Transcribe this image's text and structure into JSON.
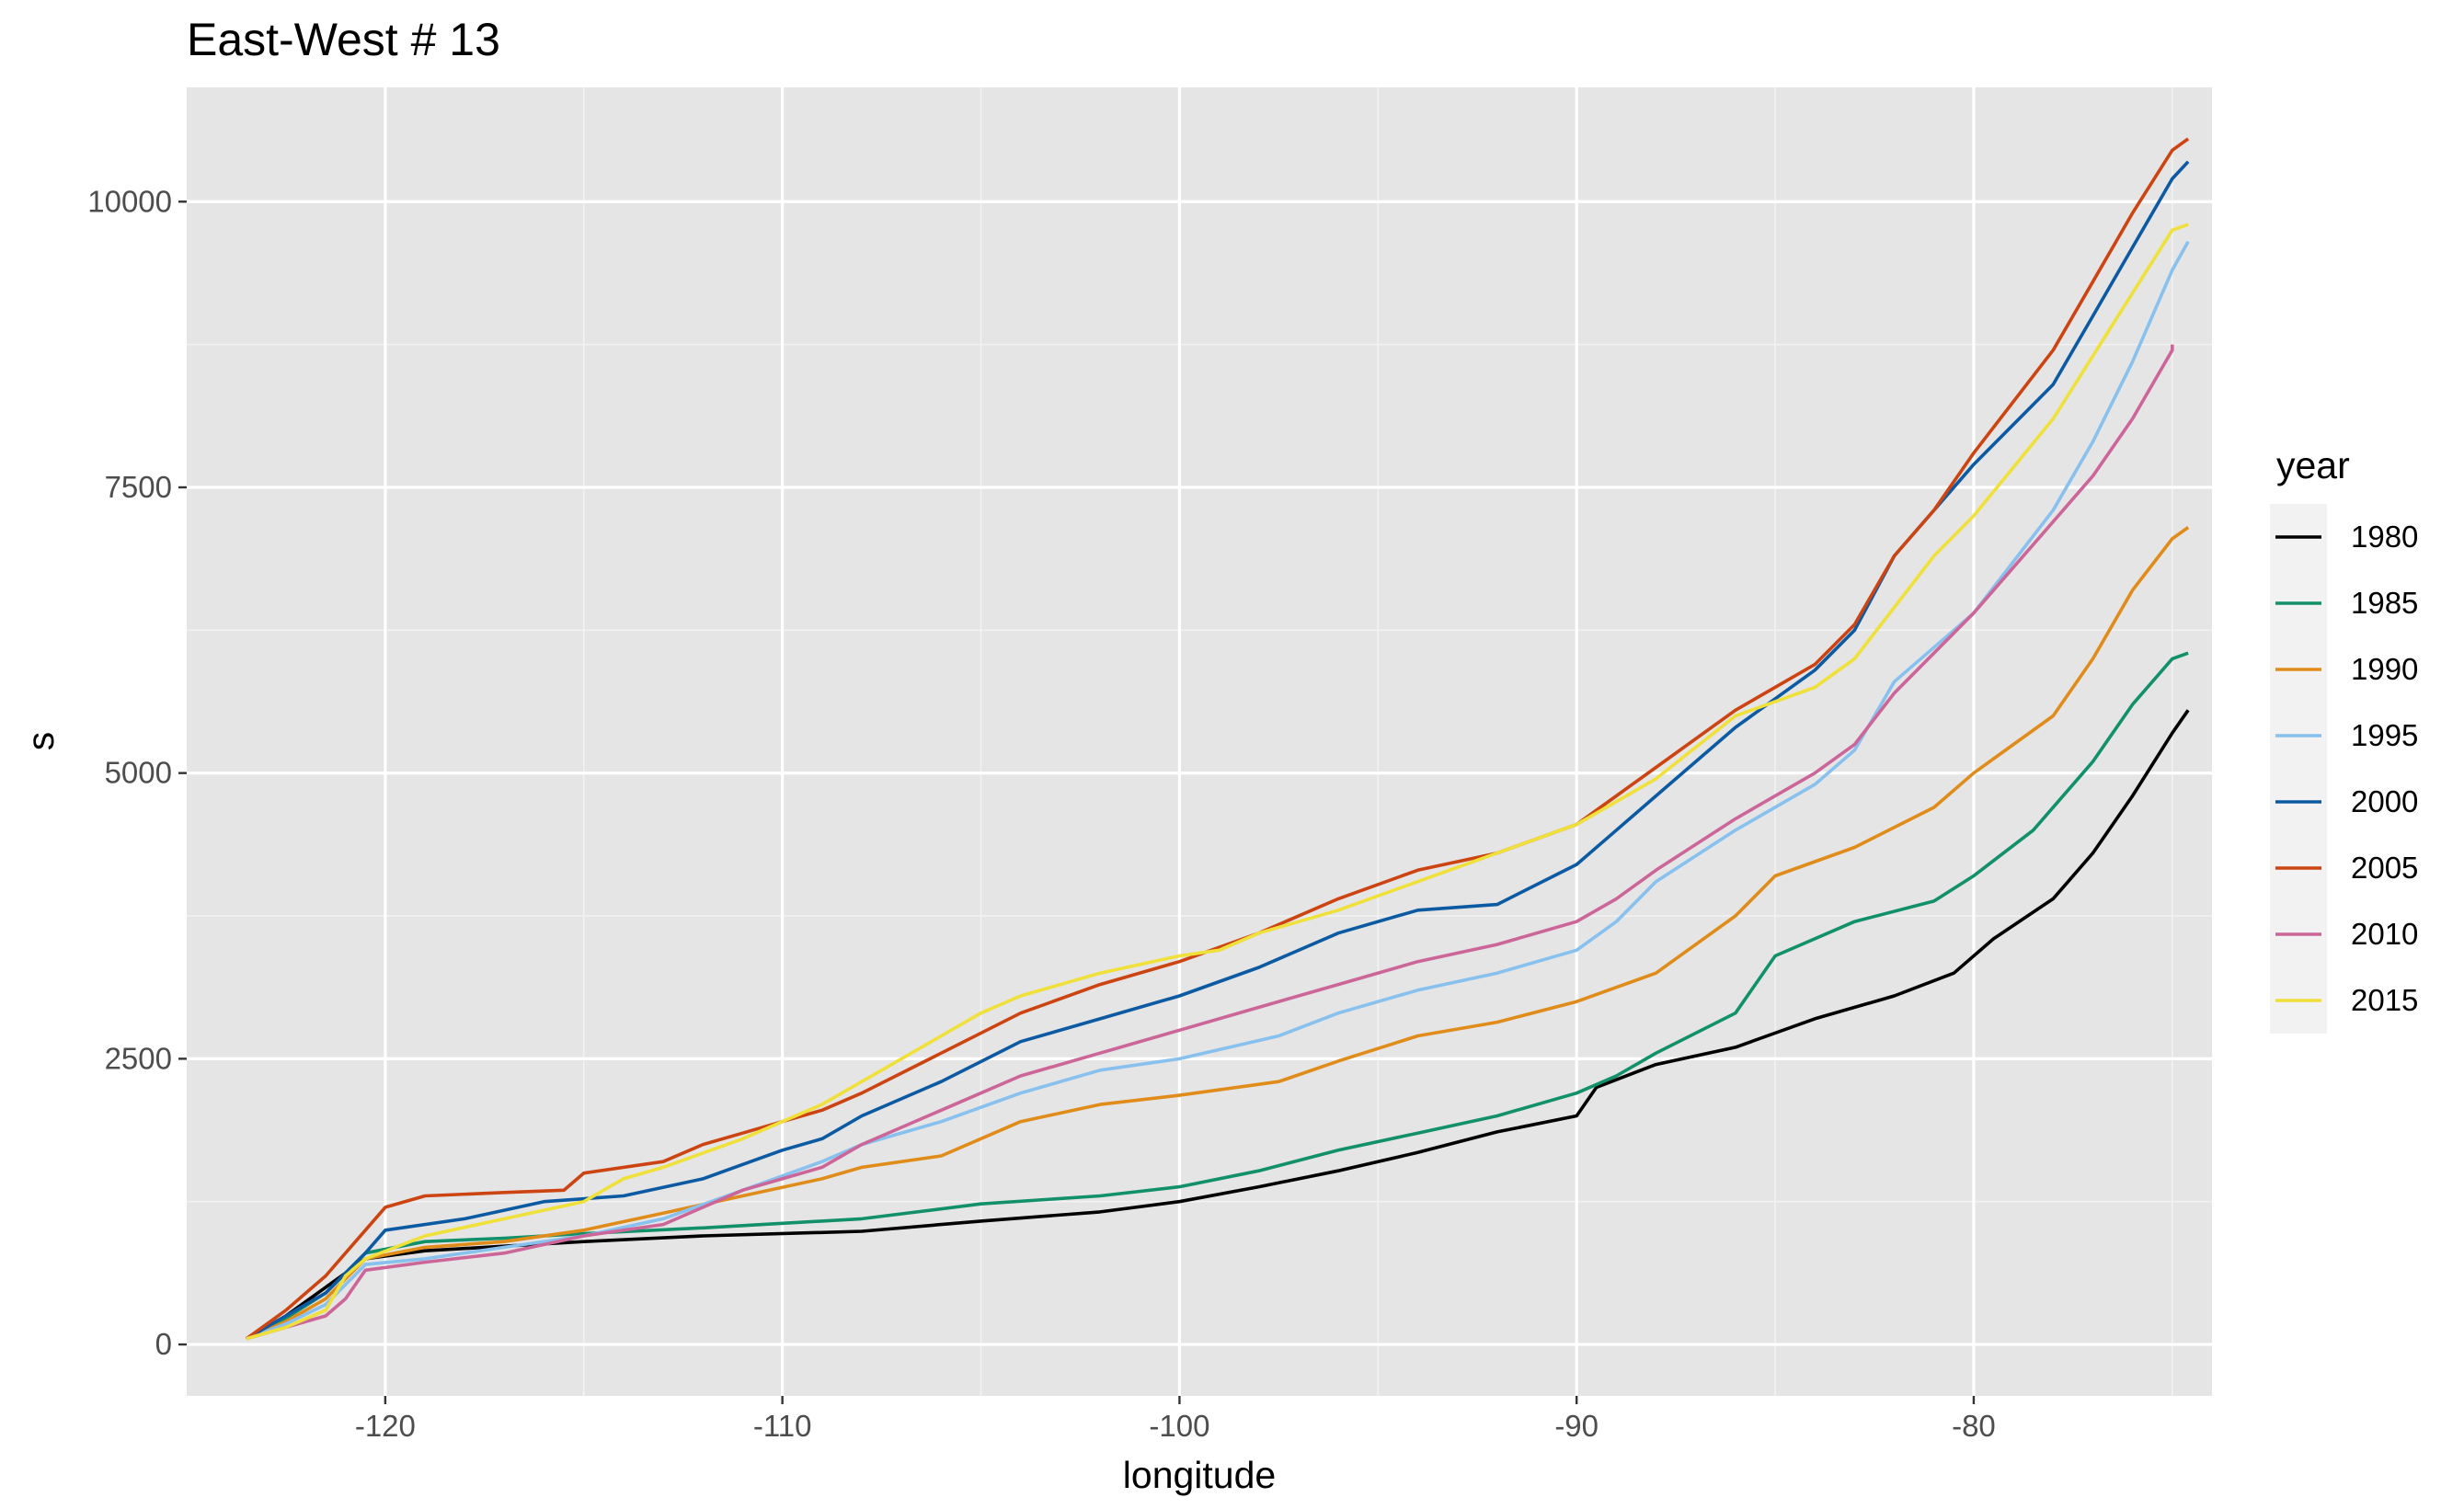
{
  "chart_data": {
    "type": "line",
    "title": "East-West # 13",
    "xlabel": "longitude",
    "ylabel": "s",
    "xlim": [
      -125,
      -74
    ],
    "ylim": [
      -450,
      11000
    ],
    "x_ticks": [
      -120,
      -110,
      -100,
      -90,
      -80
    ],
    "x_tick_labels": [
      "-120",
      "-110",
      "-100",
      "-90",
      "-80"
    ],
    "y_ticks": [
      0,
      2500,
      5000,
      7500,
      10000
    ],
    "y_tick_labels": [
      "0",
      "2500",
      "5000",
      "7500",
      "10000"
    ],
    "grid": true,
    "legend": {
      "title": "year",
      "position": "right"
    },
    "series": [
      {
        "name": "1980",
        "color": "#000000",
        "x": [
          -123.5,
          -122.5,
          -121.5,
          -120.5,
          -119,
          -117,
          -115,
          -112,
          -108,
          -105,
          -102,
          -100,
          -98,
          -96,
          -94,
          -92,
          -90,
          -89.5,
          -88,
          -86,
          -84,
          -82,
          -80.5,
          -79.5,
          -78,
          -77,
          -76,
          -75,
          -74.6
        ],
        "y": [
          50,
          250,
          500,
          750,
          820,
          860,
          900,
          950,
          990,
          1080,
          1160,
          1250,
          1380,
          1520,
          1680,
          1860,
          2000,
          2250,
          2450,
          2600,
          2850,
          3050,
          3250,
          3550,
          3900,
          4300,
          4800,
          5350,
          5550
        ]
      },
      {
        "name": "1985",
        "color": "#11906a",
        "x": [
          -123.5,
          -122.5,
          -121.5,
          -120.5,
          -119,
          -117,
          -115,
          -112,
          -108,
          -105,
          -102,
          -100,
          -98,
          -96,
          -94,
          -92,
          -90,
          -89,
          -88,
          -86,
          -85,
          -83,
          -81,
          -80,
          -78.5,
          -77,
          -76,
          -75,
          -74.6
        ],
        "y": [
          50,
          230,
          450,
          800,
          900,
          930,
          970,
          1020,
          1100,
          1230,
          1300,
          1380,
          1520,
          1700,
          1850,
          2000,
          2200,
          2350,
          2550,
          2900,
          3400,
          3700,
          3880,
          4100,
          4500,
          5100,
          5600,
          6000,
          6050
        ]
      },
      {
        "name": "1990",
        "color": "#e08c1a",
        "x": [
          -123.5,
          -122.5,
          -121.5,
          -120.5,
          -119,
          -117,
          -115,
          -113,
          -111,
          -109,
          -108,
          -106,
          -104,
          -102,
          -100,
          -97.5,
          -96,
          -94,
          -92,
          -90,
          -88,
          -86,
          -85,
          -83,
          -81,
          -80,
          -78,
          -77,
          -76,
          -75,
          -74.6
        ],
        "y": [
          50,
          200,
          400,
          750,
          850,
          900,
          1000,
          1150,
          1300,
          1450,
          1550,
          1650,
          1950,
          2100,
          2180,
          2300,
          2480,
          2700,
          2820,
          3000,
          3250,
          3750,
          4100,
          4350,
          4700,
          5000,
          5500,
          6000,
          6600,
          7050,
          7150
        ]
      },
      {
        "name": "1995",
        "color": "#88c0ee",
        "x": [
          -123.5,
          -122.5,
          -121.5,
          -120.5,
          -119,
          -117,
          -115,
          -113,
          -111,
          -109,
          -108,
          -106,
          -104,
          -102,
          -100,
          -97.5,
          -96,
          -94,
          -92,
          -90,
          -89,
          -88,
          -86,
          -84,
          -83,
          -82,
          -80,
          -78,
          -77,
          -76,
          -75,
          -74.6
        ],
        "y": [
          50,
          180,
          350,
          700,
          750,
          850,
          950,
          1100,
          1350,
          1600,
          1750,
          1950,
          2200,
          2400,
          2500,
          2700,
          2900,
          3100,
          3250,
          3450,
          3700,
          4050,
          4500,
          4900,
          5200,
          5800,
          6400,
          7300,
          7900,
          8600,
          9400,
          9650
        ]
      },
      {
        "name": "2000",
        "color": "#0c5aa2",
        "x": [
          -123.5,
          -122.5,
          -121.5,
          -120.5,
          -120,
          -118,
          -116,
          -114,
          -112,
          -110,
          -109,
          -108,
          -106,
          -104,
          -102,
          -100,
          -98,
          -96,
          -94,
          -92,
          -90,
          -89,
          -88,
          -86,
          -84,
          -83,
          -82,
          -81,
          -80,
          -78,
          -77,
          -76,
          -75,
          -74.6
        ],
        "y": [
          50,
          250,
          450,
          800,
          1000,
          1100,
          1250,
          1300,
          1450,
          1700,
          1800,
          2000,
          2300,
          2650,
          2850,
          3050,
          3300,
          3600,
          3800,
          3850,
          4200,
          4500,
          4800,
          5400,
          5900,
          6250,
          6900,
          7300,
          7700,
          8400,
          9000,
          9600,
          10200,
          10350
        ]
      },
      {
        "name": "2005",
        "color": "#cc4411",
        "x": [
          -123.5,
          -122.5,
          -121.5,
          -120.5,
          -120,
          -119,
          -117,
          -115.5,
          -115,
          -113,
          -112,
          -111,
          -110,
          -109,
          -108,
          -106,
          -104,
          -102,
          -100,
          -98,
          -96,
          -94,
          -92,
          -90,
          -89,
          -88,
          -86,
          -84,
          -83,
          -82,
          -81,
          -80,
          -78,
          -77,
          -76,
          -75,
          -74.6
        ],
        "y": [
          50,
          300,
          600,
          1000,
          1200,
          1300,
          1330,
          1350,
          1500,
          1600,
          1750,
          1850,
          1950,
          2050,
          2200,
          2550,
          2900,
          3150,
          3350,
          3600,
          3900,
          4150,
          4300,
          4550,
          4800,
          5050,
          5550,
          5950,
          6300,
          6900,
          7300,
          7800,
          8700,
          9300,
          9900,
          10450,
          10550
        ]
      },
      {
        "name": "2010",
        "color": "#cc6699",
        "x": [
          -123.5,
          -122.5,
          -121.5,
          -121,
          -120.5,
          -119,
          -117,
          -115,
          -113,
          -112,
          -111,
          -110,
          -109,
          -108,
          -106,
          -104,
          -102,
          -100,
          -98,
          -96,
          -94,
          -92,
          -90,
          -89,
          -88,
          -86,
          -84,
          -83,
          -82,
          -80,
          -78,
          -77,
          -76,
          -75,
          -75
        ],
        "y": [
          50,
          150,
          250,
          400,
          650,
          720,
          800,
          950,
          1050,
          1200,
          1350,
          1450,
          1550,
          1750,
          2050,
          2350,
          2550,
          2750,
          2950,
          3150,
          3350,
          3500,
          3700,
          3900,
          4150,
          4600,
          5000,
          5250,
          5700,
          6400,
          7200,
          7600,
          8100,
          8700,
          8750
        ]
      },
      {
        "name": "2015",
        "color": "#efe03a",
        "x": [
          -123.5,
          -122.5,
          -121.5,
          -121,
          -120.5,
          -119,
          -117,
          -115,
          -114,
          -113,
          -111,
          -110,
          -109,
          -108,
          -107,
          -106,
          -105,
          -104,
          -102,
          -100,
          -99,
          -98,
          -96,
          -94,
          -92,
          -90,
          -89,
          -88,
          -86,
          -84,
          -83,
          -82,
          -81,
          -80,
          -78,
          -77,
          -76,
          -75,
          -74.6
        ],
        "y": [
          50,
          150,
          300,
          600,
          750,
          950,
          1100,
          1250,
          1450,
          1550,
          1800,
          1950,
          2100,
          2300,
          2500,
          2700,
          2900,
          3050,
          3250,
          3400,
          3450,
          3600,
          3800,
          4050,
          4300,
          4550,
          4750,
          4950,
          5500,
          5750,
          6000,
          6450,
          6900,
          7250,
          8100,
          8650,
          9200,
          9750,
          9800
        ]
      }
    ]
  }
}
